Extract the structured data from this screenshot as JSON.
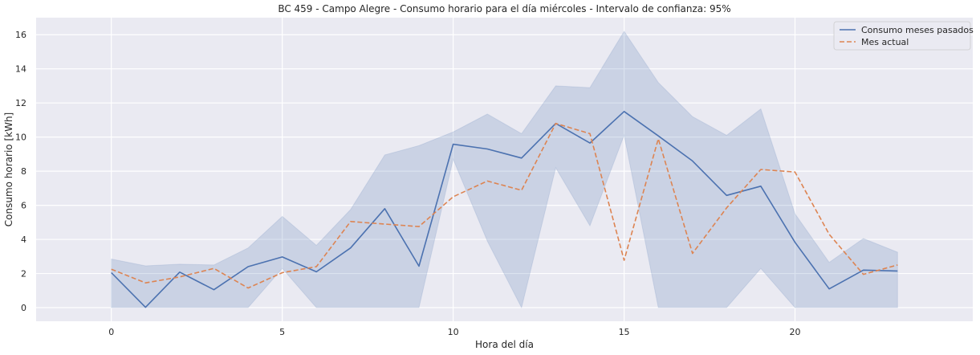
{
  "chart_data": {
    "type": "line",
    "title": "BC 459 - Campo Alegre - Consumo horario para el día miércoles - Intervalo de confianza: 95%",
    "xlabel": "Hora del día",
    "ylabel": "Consumo horario [kWh]",
    "xlim": [
      -2.2,
      25.2
    ],
    "ylim": [
      -0.8,
      17.0
    ],
    "xticks": [
      0,
      5,
      10,
      15,
      20
    ],
    "yticks": [
      0,
      2,
      4,
      6,
      8,
      10,
      12,
      14,
      16
    ],
    "grid": true,
    "legend_position": "top-right",
    "x": [
      0,
      1,
      2,
      3,
      4,
      5,
      6,
      7,
      8,
      9,
      10,
      11,
      12,
      13,
      14,
      15,
      16,
      17,
      18,
      19,
      20,
      21,
      22,
      23
    ],
    "series": [
      {
        "name": "Consumo meses pasados",
        "color": "#4c72b0",
        "style": "solid",
        "values": [
          2.05,
          0.02,
          2.08,
          1.05,
          2.4,
          2.97,
          2.1,
          3.5,
          5.8,
          2.43,
          9.58,
          9.3,
          8.77,
          10.8,
          9.65,
          11.5,
          10.07,
          8.6,
          6.58,
          7.12,
          3.83,
          1.1,
          2.2,
          2.15
        ]
      },
      {
        "name": "Mes actual",
        "color": "#dd8452",
        "style": "dashed",
        "values": [
          2.25,
          1.45,
          1.8,
          2.3,
          1.15,
          2.05,
          2.4,
          5.05,
          4.9,
          4.75,
          6.5,
          7.42,
          6.88,
          10.8,
          10.2,
          2.78,
          9.9,
          3.18,
          5.85,
          8.1,
          7.95,
          4.3,
          1.95,
          2.5
        ]
      }
    ],
    "confidence_band": {
      "series": "Consumo meses pasados",
      "color": "#4c72b0",
      "lower": [
        0,
        0,
        0,
        0,
        0,
        2.3,
        0,
        0,
        0,
        0,
        8.7,
        3.9,
        0,
        8.2,
        4.8,
        10.1,
        0,
        0,
        0,
        2.3,
        0,
        0,
        0,
        0
      ],
      "upper": [
        2.85,
        2.45,
        2.55,
        2.5,
        3.5,
        5.35,
        3.65,
        5.75,
        8.95,
        9.5,
        10.3,
        11.35,
        10.2,
        13.0,
        12.9,
        16.2,
        13.2,
        11.2,
        10.1,
        11.65,
        5.5,
        2.65,
        4.05,
        3.25
      ]
    }
  }
}
